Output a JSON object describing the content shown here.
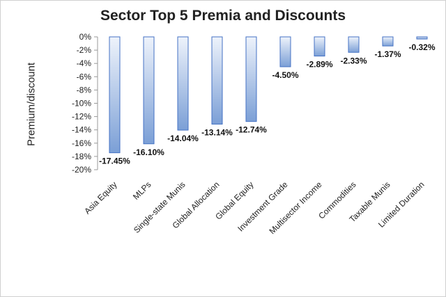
{
  "chart_data": {
    "type": "bar",
    "title": "Sector Top 5 Premia and Discounts",
    "xlabel": "",
    "ylabel": "Premium/discount",
    "ylim": [
      -20,
      0
    ],
    "yticks": [
      "0%",
      "-2%",
      "-4%",
      "-6%",
      "-8%",
      "-10%",
      "-12%",
      "-14%",
      "-16%",
      "-18%",
      "-20%"
    ],
    "categories": [
      "Asia Equity",
      "MLPs",
      "Single-state Munis",
      "Global Allocation",
      "Global Equity",
      "Investment Grade",
      "Multisector Income",
      "Commodities",
      "Taxable Munis",
      "Limited Duration"
    ],
    "values": [
      -17.45,
      -16.1,
      -14.04,
      -13.14,
      -12.74,
      -4.5,
      -2.89,
      -2.33,
      -1.37,
      -0.32
    ],
    "data_labels": [
      "-17.45%",
      "-16.10%",
      "-14.04%",
      "-13.14%",
      "-12.74%",
      "-4.50%",
      "-2.89%",
      "-2.33%",
      "-1.37%",
      "-0.32%"
    ],
    "grid": false,
    "legend": "none",
    "colors": {
      "bar_fill_light": "#eef3fb",
      "bar_fill_dark": "#7b9fd6",
      "bar_border": "#4472c4",
      "axis": "#999999"
    }
  }
}
